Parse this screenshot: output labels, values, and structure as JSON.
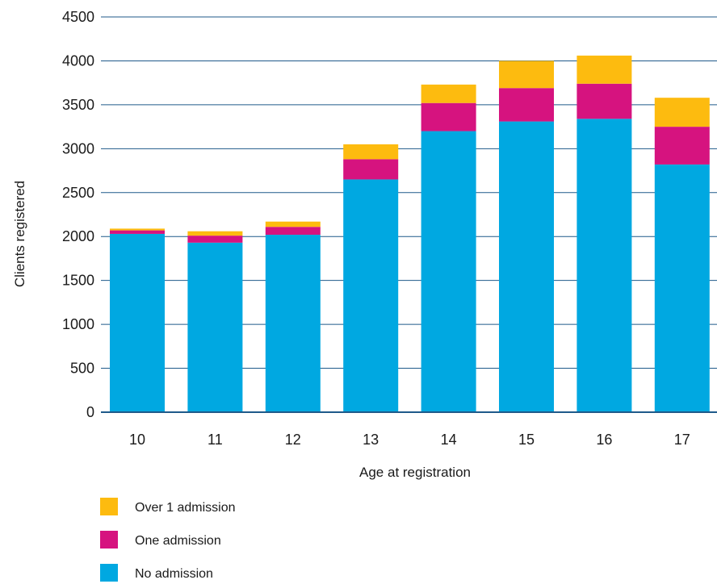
{
  "chart_data": {
    "type": "bar",
    "stacked": true,
    "title": "",
    "xlabel": "Age at registration",
    "ylabel": "Clients registered",
    "ylim": [
      0,
      4500
    ],
    "yticks": [
      0,
      500,
      1000,
      1500,
      2000,
      2500,
      3000,
      3500,
      4000,
      4500
    ],
    "grid": true,
    "legend_position": "bottom-left",
    "categories": [
      "10",
      "11",
      "12",
      "13",
      "14",
      "15",
      "16",
      "17"
    ],
    "series": [
      {
        "name": "No admission",
        "color": "#00a8e1",
        "values": [
          2030,
          1930,
          2020,
          2650,
          3200,
          3310,
          3340,
          2820
        ]
      },
      {
        "name": "One admission",
        "color": "#d6137f",
        "values": [
          40,
          80,
          90,
          230,
          320,
          380,
          400,
          430
        ]
      },
      {
        "name": "Over 1 admission",
        "color": "#fdbb0f",
        "values": [
          20,
          50,
          60,
          170,
          210,
          310,
          320,
          330
        ]
      }
    ],
    "legend_order": [
      "Over 1 admission",
      "One admission",
      "No admission"
    ],
    "grid_color": "#1f5a8a",
    "axis_color": "#1f5a8a"
  }
}
